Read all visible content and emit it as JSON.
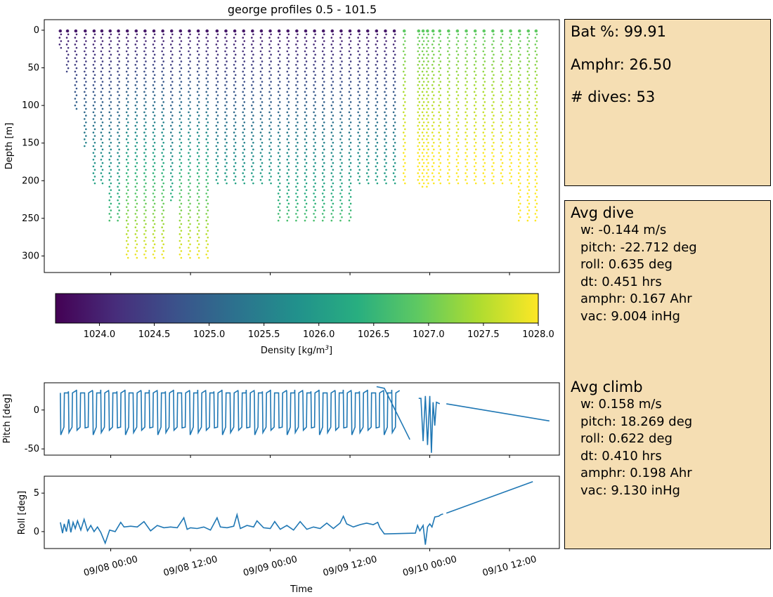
{
  "figure": {
    "title": "george profiles 0.5 - 101.5"
  },
  "chart_data": [
    {
      "type": "scatter",
      "name": "depth-profiles",
      "title": "george profiles 0.5 - 101.5",
      "ylabel": "Depth [m]",
      "ylim": [
        322,
        -14
      ],
      "yticks": [
        0,
        50,
        100,
        150,
        200,
        250,
        300
      ],
      "xlim": [
        "2023-09-07 14:00",
        "2023-09-10 19:30"
      ],
      "color_variable": "Density [kg/m$^3$]",
      "clim": [
        1023.6,
        1028.0
      ],
      "profiles": [
        {
          "t": "2023-09-07 16:25",
          "max_depth": 25
        },
        {
          "t": "2023-09-07 17:30",
          "max_depth": 55
        },
        {
          "t": "2023-09-07 18:45",
          "max_depth": 105
        },
        {
          "t": "2023-09-07 20:10",
          "max_depth": 155
        },
        {
          "t": "2023-09-07 21:30",
          "max_depth": 205
        },
        {
          "t": "2023-09-07 22:40",
          "max_depth": 205
        },
        {
          "t": "2023-09-07 23:55",
          "max_depth": 255
        },
        {
          "t": "2023-09-08 01:10",
          "max_depth": 255
        },
        {
          "t": "2023-09-08 02:30",
          "max_depth": 305
        },
        {
          "t": "2023-09-08 03:50",
          "max_depth": 305
        },
        {
          "t": "2023-09-08 05:10",
          "max_depth": 305
        },
        {
          "t": "2023-09-08 06:30",
          "max_depth": 305
        },
        {
          "t": "2023-09-08 07:50",
          "max_depth": 305
        },
        {
          "t": "2023-09-08 09:10",
          "max_depth": 230
        },
        {
          "t": "2023-09-08 10:30",
          "max_depth": 305
        },
        {
          "t": "2023-09-08 11:50",
          "max_depth": 305
        },
        {
          "t": "2023-09-08 13:10",
          "max_depth": 305
        },
        {
          "t": "2023-09-08 14:30",
          "max_depth": 305
        },
        {
          "t": "2023-09-08 16:00",
          "max_depth": 205
        },
        {
          "t": "2023-09-08 17:20",
          "max_depth": 205
        },
        {
          "t": "2023-09-08 18:40",
          "max_depth": 205
        },
        {
          "t": "2023-09-08 20:00",
          "max_depth": 205
        },
        {
          "t": "2023-09-08 21:20",
          "max_depth": 205
        },
        {
          "t": "2023-09-08 22:40",
          "max_depth": 205
        },
        {
          "t": "2023-09-09 00:00",
          "max_depth": 205
        },
        {
          "t": "2023-09-09 01:20",
          "max_depth": 255
        },
        {
          "t": "2023-09-09 02:40",
          "max_depth": 255
        },
        {
          "t": "2023-09-09 04:00",
          "max_depth": 255
        },
        {
          "t": "2023-09-09 05:20",
          "max_depth": 255
        },
        {
          "t": "2023-09-09 06:40",
          "max_depth": 255
        },
        {
          "t": "2023-09-09 08:00",
          "max_depth": 255
        },
        {
          "t": "2023-09-09 09:20",
          "max_depth": 255
        },
        {
          "t": "2023-09-09 10:40",
          "max_depth": 255
        },
        {
          "t": "2023-09-09 12:00",
          "max_depth": 255
        },
        {
          "t": "2023-09-09 13:20",
          "max_depth": 205
        },
        {
          "t": "2023-09-09 14:40",
          "max_depth": 205
        },
        {
          "t": "2023-09-09 16:00",
          "max_depth": 205
        },
        {
          "t": "2023-09-09 17:20",
          "max_depth": 205
        },
        {
          "t": "2023-09-09 18:40",
          "max_depth": 205
        },
        {
          "t": "2023-09-09 20:10",
          "max_depth": 205
        },
        {
          "t": "2023-09-09 22:20",
          "max_depth": 205
        },
        {
          "t": "2023-09-09 23:00",
          "max_depth": 210
        },
        {
          "t": "2023-09-09 23:40",
          "max_depth": 210
        },
        {
          "t": "2023-09-10 00:30",
          "max_depth": 205
        },
        {
          "t": "2023-09-10 01:30",
          "max_depth": 205
        },
        {
          "t": "2023-09-10 02:50",
          "max_depth": 205
        },
        {
          "t": "2023-09-10 04:10",
          "max_depth": 205
        },
        {
          "t": "2023-09-10 05:30",
          "max_depth": 205
        },
        {
          "t": "2023-09-10 06:50",
          "max_depth": 205
        },
        {
          "t": "2023-09-10 08:10",
          "max_depth": 205
        },
        {
          "t": "2023-09-10 09:30",
          "max_depth": 205
        },
        {
          "t": "2023-09-10 10:50",
          "max_depth": 205
        },
        {
          "t": "2023-09-10 12:10",
          "max_depth": 205
        },
        {
          "t": "2023-09-10 13:30",
          "max_depth": 255
        },
        {
          "t": "2023-09-10 14:50",
          "max_depth": 255
        },
        {
          "t": "2023-09-10 16:00",
          "max_depth": 255
        }
      ]
    },
    {
      "type": "colorbar",
      "name": "density-colorbar",
      "colormap": "viridis",
      "range": [
        1023.6,
        1028.0
      ],
      "ticks": [
        "1024.0",
        "1024.5",
        "1025.0",
        "1025.5",
        "1026.0",
        "1026.5",
        "1027.0",
        "1027.5",
        "1028.0"
      ],
      "label": "Density [kg/m$^3$]",
      "label_text": "Density [kg/m",
      "label_sup": "3",
      "label_end": "]"
    },
    {
      "type": "line",
      "name": "pitch",
      "ylabel": "Pitch [deg]",
      "ylim": [
        -58,
        35
      ],
      "yticks": [
        0,
        -50
      ],
      "color": "#1f77b4",
      "series": {
        "segment_1": {
          "start": "2023-09-07 16:25",
          "end": "2023-09-09 19:30",
          "dive_pitch": -32,
          "climb_pitch": 22
        },
        "ramp": [
          [
            "2023-09-09 16:00",
            30
          ],
          [
            "2023-09-09 17:10",
            28
          ],
          [
            "2023-09-09 21:00",
            -38
          ]
        ],
        "segment_2": [
          [
            "2023-09-09 22:20",
            15
          ],
          [
            "2023-09-09 22:40",
            15
          ],
          [
            "2023-09-09 23:00",
            -40
          ],
          [
            "2023-09-09 23:20",
            18
          ],
          [
            "2023-09-09 23:40",
            -45
          ],
          [
            "2023-09-10 00:00",
            18
          ],
          [
            "2023-09-10 00:15",
            -55
          ],
          [
            "2023-09-10 00:30",
            10
          ],
          [
            "2023-09-10 00:45",
            -20
          ],
          [
            "2023-09-10 01:00",
            10
          ],
          [
            "2023-09-10 01:30",
            8
          ]
        ],
        "segment_3": [
          [
            "2023-09-10 02:30",
            8
          ],
          [
            "2023-09-10 18:00",
            -14
          ]
        ]
      }
    },
    {
      "type": "line",
      "name": "roll",
      "ylabel": "Roll [deg]",
      "xlabel": "Time",
      "ylim": [
        -2.2,
        7.2
      ],
      "yticks": [
        0,
        5
      ],
      "xticks": [
        "09/08 00:00",
        "09/08 12:00",
        "09/09 00:00",
        "09/09 12:00",
        "09/10 00:00",
        "09/10 12:00"
      ],
      "color": "#1f77b4",
      "points": [
        [
          "2023-09-07 16:25",
          1.2
        ],
        [
          "2023-09-07 16:45",
          -0.2
        ],
        [
          "2023-09-07 17:00",
          1.0
        ],
        [
          "2023-09-07 17:20",
          0.0
        ],
        [
          "2023-09-07 17:40",
          1.6
        ],
        [
          "2023-09-07 18:00",
          -0.1
        ],
        [
          "2023-09-07 18:20",
          1.2
        ],
        [
          "2023-09-07 18:40",
          0.4
        ],
        [
          "2023-09-07 19:00",
          1.4
        ],
        [
          "2023-09-07 19:30",
          0.2
        ],
        [
          "2023-09-07 20:00",
          1.6
        ],
        [
          "2023-09-07 20:30",
          0.1
        ],
        [
          "2023-09-07 21:00",
          0.8
        ],
        [
          "2023-09-07 21:30",
          0.0
        ],
        [
          "2023-09-07 22:00",
          0.6
        ],
        [
          "2023-09-07 22:30",
          -0.1
        ],
        [
          "2023-09-07 23:10",
          -1.5
        ],
        [
          "2023-09-07 23:50",
          0.2
        ],
        [
          "2023-09-08 00:40",
          0.0
        ],
        [
          "2023-09-08 01:30",
          1.2
        ],
        [
          "2023-09-08 02:00",
          0.6
        ],
        [
          "2023-09-08 03:00",
          0.7
        ],
        [
          "2023-09-08 04:00",
          0.6
        ],
        [
          "2023-09-08 05:00",
          1.3
        ],
        [
          "2023-09-08 06:00",
          0.1
        ],
        [
          "2023-09-08 07:00",
          0.8
        ],
        [
          "2023-09-08 08:00",
          0.5
        ],
        [
          "2023-09-08 09:00",
          0.6
        ],
        [
          "2023-09-08 10:00",
          0.5
        ],
        [
          "2023-09-08 11:00",
          1.8
        ],
        [
          "2023-09-08 11:30",
          0.3
        ],
        [
          "2023-09-08 12:00",
          0.5
        ],
        [
          "2023-09-08 13:00",
          0.4
        ],
        [
          "2023-09-08 14:00",
          0.6
        ],
        [
          "2023-09-08 15:00",
          0.2
        ],
        [
          "2023-09-08 16:00",
          1.8
        ],
        [
          "2023-09-08 16:30",
          0.6
        ],
        [
          "2023-09-08 17:30",
          0.5
        ],
        [
          "2023-09-08 18:30",
          0.7
        ],
        [
          "2023-09-08 19:00",
          2.2
        ],
        [
          "2023-09-08 19:30",
          0.4
        ],
        [
          "2023-09-08 20:30",
          0.8
        ],
        [
          "2023-09-08 21:30",
          0.6
        ],
        [
          "2023-09-08 22:00",
          1.4
        ],
        [
          "2023-09-08 23:00",
          0.5
        ],
        [
          "2023-09-09 00:00",
          0.4
        ],
        [
          "2023-09-09 00:40",
          1.3
        ],
        [
          "2023-09-09 01:30",
          0.3
        ],
        [
          "2023-09-09 02:30",
          0.8
        ],
        [
          "2023-09-09 03:30",
          0.2
        ],
        [
          "2023-09-09 04:30",
          1.3
        ],
        [
          "2023-09-09 05:30",
          0.3
        ],
        [
          "2023-09-09 06:30",
          0.6
        ],
        [
          "2023-09-09 07:30",
          0.4
        ],
        [
          "2023-09-09 08:30",
          1.1
        ],
        [
          "2023-09-09 09:30",
          0.4
        ],
        [
          "2023-09-09 10:30",
          1.1
        ],
        [
          "2023-09-09 11:00",
          2.0
        ],
        [
          "2023-09-09 11:30",
          1.0
        ],
        [
          "2023-09-09 12:30",
          0.6
        ],
        [
          "2023-09-09 13:30",
          0.9
        ],
        [
          "2023-09-09 14:30",
          1.1
        ],
        [
          "2023-09-09 15:30",
          0.9
        ],
        [
          "2023-09-09 16:10",
          1.2
        ],
        [
          "2023-09-09 16:30",
          0.5
        ],
        [
          "2023-09-09 17:10",
          -0.3
        ],
        [
          "2023-09-09 21:50",
          -0.2
        ],
        [
          "2023-09-09 22:10",
          0.8
        ],
        [
          "2023-09-09 22:30",
          0.1
        ],
        [
          "2023-09-09 23:00",
          0.8
        ],
        [
          "2023-09-09 23:20",
          -1.7
        ],
        [
          "2023-09-09 23:40",
          0.6
        ],
        [
          "2023-09-10 00:00",
          1.0
        ],
        [
          "2023-09-10 00:20",
          0.6
        ],
        [
          "2023-09-10 00:45",
          1.9
        ],
        [
          "2023-09-10 01:20",
          2.0
        ],
        [
          "2023-09-10 01:40",
          2.2
        ],
        [
          "2023-09-10 02:00",
          2.3
        ]
      ],
      "points_segment_2": [
        [
          "2023-09-10 02:30",
          2.4
        ],
        [
          "2023-09-10 15:30",
          6.5
        ]
      ]
    }
  ],
  "stats_panel": {
    "battery": "Bat %: 99.91",
    "amphr": "Amphr: 26.50",
    "dives": "# dives: 53"
  },
  "avg_panel": {
    "dive": {
      "heading": "Avg dive",
      "lines": [
        "w: -0.144 m/s",
        "pitch: -22.712 deg",
        "roll: 0.635 deg",
        "dt: 0.451 hrs",
        "amphr: 0.167 Ahr",
        "vac: 9.004 inHg"
      ]
    },
    "climb": {
      "heading": "Avg climb",
      "lines": [
        "w: 0.158 m/s",
        "pitch: 18.269 deg",
        "roll: 0.622 deg",
        "dt: 0.410 hrs",
        "amphr: 0.198 Ahr",
        "vac: 9.130 inHg"
      ]
    }
  }
}
